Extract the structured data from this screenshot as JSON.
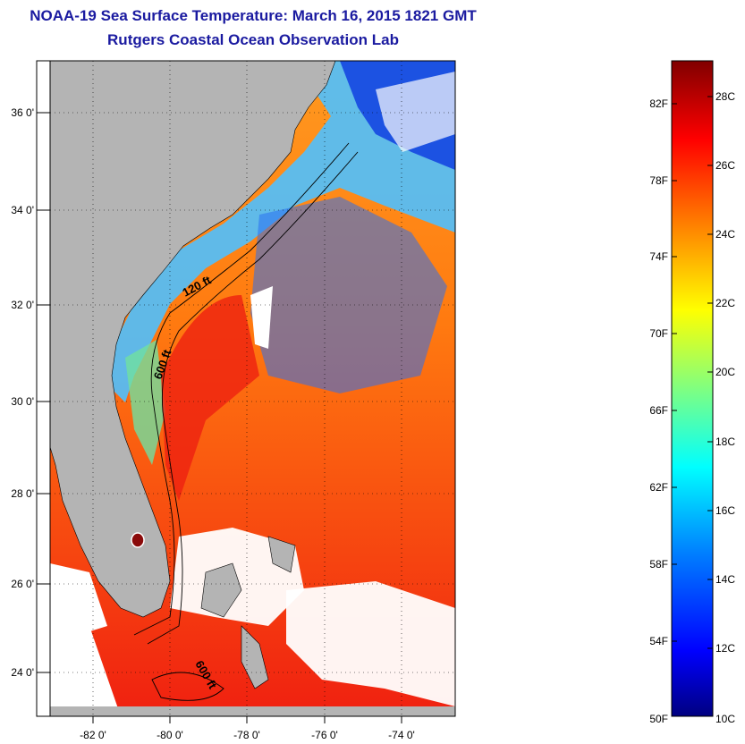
{
  "title": {
    "line1": "NOAA-19 Sea Surface Temperature:  March 16, 2015 1821 GMT",
    "line2": "Rutgers Coastal Ocean Observation Lab"
  },
  "map": {
    "lat_labels": [
      "36 0'",
      "34 0'",
      "32 0'",
      "30 0'",
      "28 0'",
      "26 0'",
      "24 0'"
    ],
    "lon_labels": [
      "-82 0'",
      "-80 0'",
      "-78 0'",
      "-76 0'",
      "-74 0'"
    ],
    "contour_labels": [
      "120 ft",
      "600 ft",
      "600 ft"
    ],
    "colors": {
      "land": "#b4b4b4",
      "cloud": "#ffffff",
      "outline": "#000000"
    }
  },
  "colorbar": {
    "fahrenheit_labels": [
      "82F",
      "78F",
      "74F",
      "70F",
      "66F",
      "62F",
      "58F",
      "54F",
      "50F"
    ],
    "celsius_labels": [
      "28C",
      "26C",
      "24C",
      "22C",
      "20C",
      "18C",
      "16C",
      "14C",
      "12C",
      "10C"
    ],
    "range_c": [
      10,
      29
    ],
    "colors": [
      "#000080",
      "#0000ff",
      "#0080ff",
      "#00ffff",
      "#80ff80",
      "#ffff00",
      "#ff8000",
      "#ff0000",
      "#800000"
    ]
  }
}
